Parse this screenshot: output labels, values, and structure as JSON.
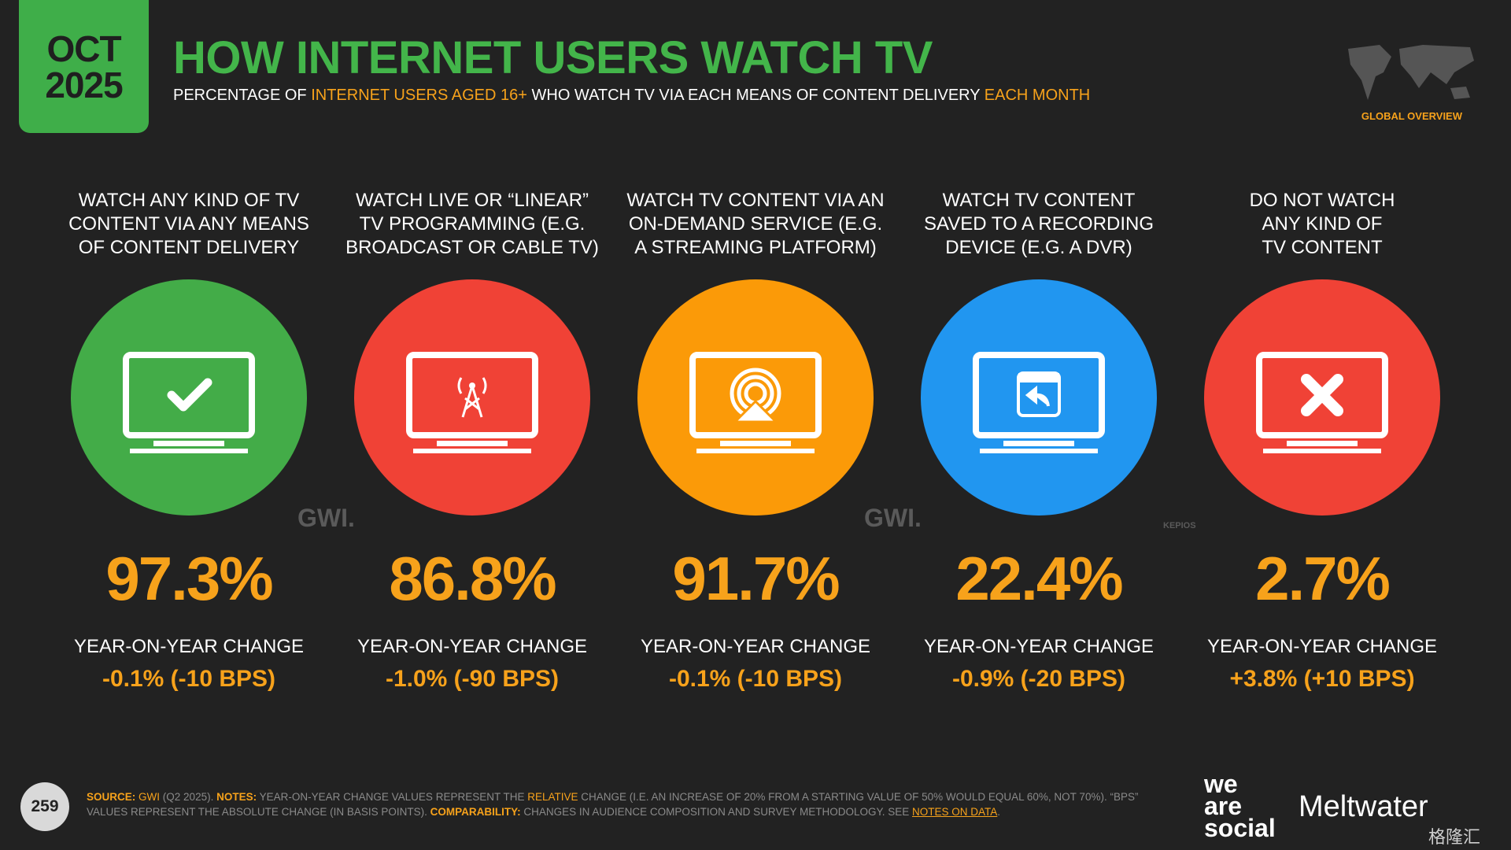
{
  "header": {
    "badge": [
      "OCT",
      "2025"
    ],
    "title": "HOW INTERNET USERS WATCH TV",
    "subtitle": [
      "PERCENTAGE OF",
      "INTERNET USERS AGED 16+",
      "WHO WATCH TV VIA EACH MEANS OF CONTENT DELIVERY",
      "EACH MONTH"
    ],
    "region": "GLOBAL OVERVIEW"
  },
  "items": [
    {
      "label": [
        "WATCH ANY KIND OF TV",
        "CONTENT VIA ANY MEANS",
        "OF CONTENT DELIVERY"
      ],
      "color": "#43ac48",
      "value": "97.3%",
      "change_label": "YEAR-ON-YEAR CHANGE",
      "change": "-0.1% (-10 BPS)"
    },
    {
      "label": [
        "WATCH LIVE OR “LINEAR”",
        "TV PROGRAMMING (E.G.",
        "BROADCAST OR CABLE TV)"
      ],
      "color": "#f04236",
      "value": "86.8%",
      "change_label": "YEAR-ON-YEAR CHANGE",
      "change": "-1.0% (-90 BPS)"
    },
    {
      "label": [
        "WATCH TV CONTENT VIA AN",
        "ON-DEMAND SERVICE (E.G.",
        "A STREAMING PLATFORM)"
      ],
      "color": "#fb9a08",
      "value": "91.7%",
      "change_label": "YEAR-ON-YEAR CHANGE",
      "change": "-0.1% (-10 BPS)"
    },
    {
      "label": [
        "WATCH TV CONTENT",
        "SAVED TO A RECORDING",
        "DEVICE (E.G. A DVR)"
      ],
      "color": "#2196f0",
      "value": "22.4%",
      "change_label": "YEAR-ON-YEAR CHANGE",
      "change": "-0.9% (-20 BPS)"
    },
    {
      "label": [
        "DO NOT WATCH",
        "ANY KIND OF",
        "TV CONTENT"
      ],
      "color": "#f04236",
      "value": "2.7%",
      "change_label": "YEAR-ON-YEAR CHANGE",
      "change": "+3.8% (+10 BPS)"
    }
  ],
  "watermarks": [
    "GWI.",
    "GWI.",
    "KEPIOS"
  ],
  "footer": {
    "page": "259",
    "segments": [
      "SOURCE:",
      "GWI",
      "(Q2 2025).",
      "NOTES:",
      "YEAR-ON-YEAR CHANGE VALUES REPRESENT THE",
      "RELATIVE",
      "CHANGE (I.E. AN INCREASE OF 20% FROM A STARTING VALUE OF 50% WOULD EQUAL 60%, NOT 70%). “BPS” VALUES REPRESENT THE ABSOLUTE CHANGE (IN BASIS POINTS).",
      "COMPARABILITY:",
      "CHANGES IN AUDIENCE COMPOSITION AND SURVEY METHODOLOGY. SEE",
      "NOTES ON DATA",
      "."
    ],
    "brand": [
      "we",
      "are",
      "social"
    ],
    "partner": "Meltwater",
    "watermark": "格隆汇"
  }
}
